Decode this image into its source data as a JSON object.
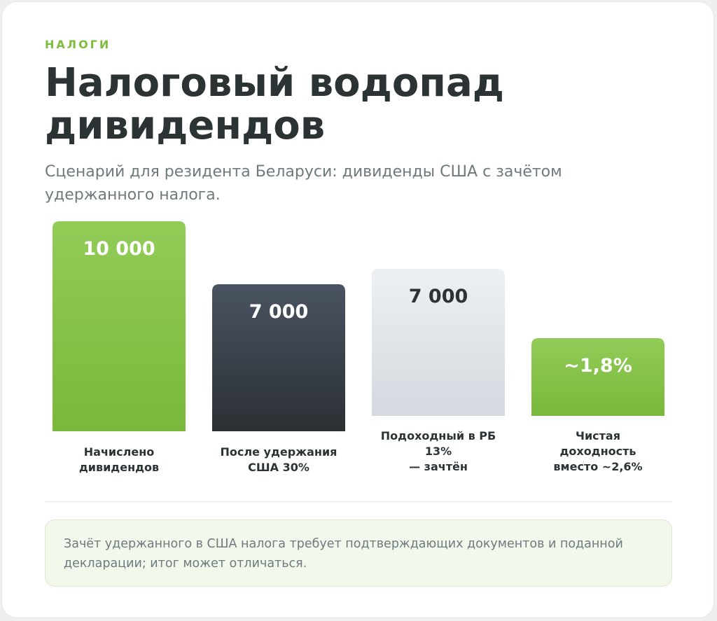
{
  "header": {
    "eyebrow": "НАЛОГИ",
    "title": "Налоговый водопад дивидендов",
    "subtitle": "Сценарий для резидента Беларуси: дивиденды США с зачётом удержанного налога."
  },
  "chart_data": {
    "type": "bar",
    "categories": [
      "Начислено дивидендов",
      "После удержания США 30%",
      "Подоходный в РБ 13% — зачтён",
      "Чистая доходность вместо ~2,6%"
    ],
    "category_lines": [
      [
        "Начислено",
        "дивидендов"
      ],
      [
        "После удержания",
        "США 30%"
      ],
      [
        "Подоходный в РБ",
        "13%",
        "— зачтён"
      ],
      [
        "Чистая",
        "доходность",
        "вместо ~2,6%"
      ]
    ],
    "values": [
      10000,
      7000,
      7000,
      1.8
    ],
    "value_labels": [
      "10 000",
      "7 000",
      "7 000",
      "~1,8%"
    ],
    "bar_heights_relative": [
      1.0,
      0.7,
      0.7,
      0.37
    ],
    "title": "",
    "xlabel": "",
    "ylabel": "",
    "colors": {
      "green_top": "#92cc58",
      "green_bottom": "#79b83b",
      "dark_top": "#4a5361",
      "dark_bottom": "#2b3034",
      "light_top": "#edf0f3",
      "light_bottom": "#d3d9df"
    },
    "bar_styles": [
      "green",
      "dark",
      "light",
      "green"
    ]
  },
  "note": {
    "text": "Зачёт удержанного в США налога требует подтверждающих документов и поданной декларации; итог может отличаться."
  }
}
